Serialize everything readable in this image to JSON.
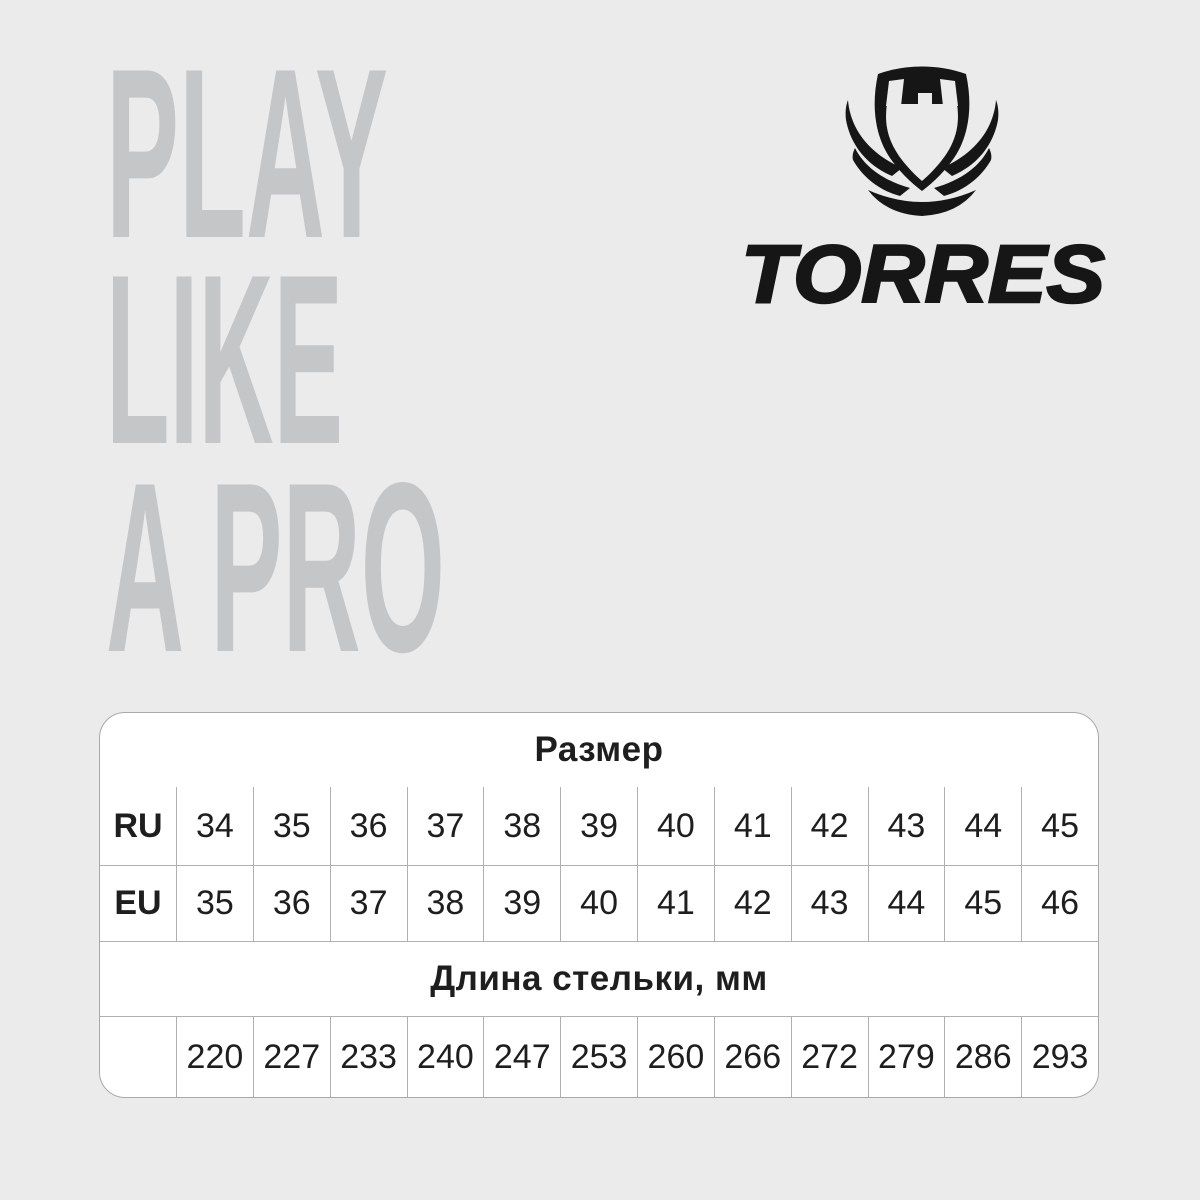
{
  "page": {
    "background_color": "#ebebec"
  },
  "hero": {
    "line1": "PLAY",
    "line2": "LIKE",
    "line3": "A PRO",
    "text_color": "#c5c6c8"
  },
  "brand": {
    "name": "TORRES",
    "emblem_icon": "torres-shield-crest-icon",
    "color": "#161616"
  },
  "size_table": {
    "title": "Размер",
    "ru_label": "RU",
    "eu_label": "EU",
    "ru_sizes": [
      "34",
      "35",
      "36",
      "37",
      "38",
      "39",
      "40",
      "41",
      "42",
      "43",
      "44",
      "45"
    ],
    "eu_sizes": [
      "35",
      "36",
      "37",
      "38",
      "39",
      "40",
      "41",
      "42",
      "43",
      "44",
      "45",
      "46"
    ],
    "insole_title": "Длина стельки, мм",
    "insole_lengths": [
      "220",
      "227",
      "233",
      "240",
      "247",
      "253",
      "260",
      "266",
      "272",
      "279",
      "286",
      "293"
    ],
    "card_background": "#ffffff",
    "grid_line_color": "#b0b0b0",
    "text_color": "#1e1e1e"
  },
  "chart_data": {
    "type": "table",
    "title": "Размер",
    "rows": [
      {
        "label": "RU",
        "values": [
          34,
          35,
          36,
          37,
          38,
          39,
          40,
          41,
          42,
          43,
          44,
          45
        ]
      },
      {
        "label": "EU",
        "values": [
          35,
          36,
          37,
          38,
          39,
          40,
          41,
          42,
          43,
          44,
          45,
          46
        ]
      },
      {
        "label": "Длина стельки, мм",
        "values": [
          220,
          227,
          233,
          240,
          247,
          253,
          260,
          266,
          272,
          279,
          286,
          293
        ]
      }
    ],
    "layout": "first column holds row labels; title row and insole-length row are merged full-width header cells"
  }
}
